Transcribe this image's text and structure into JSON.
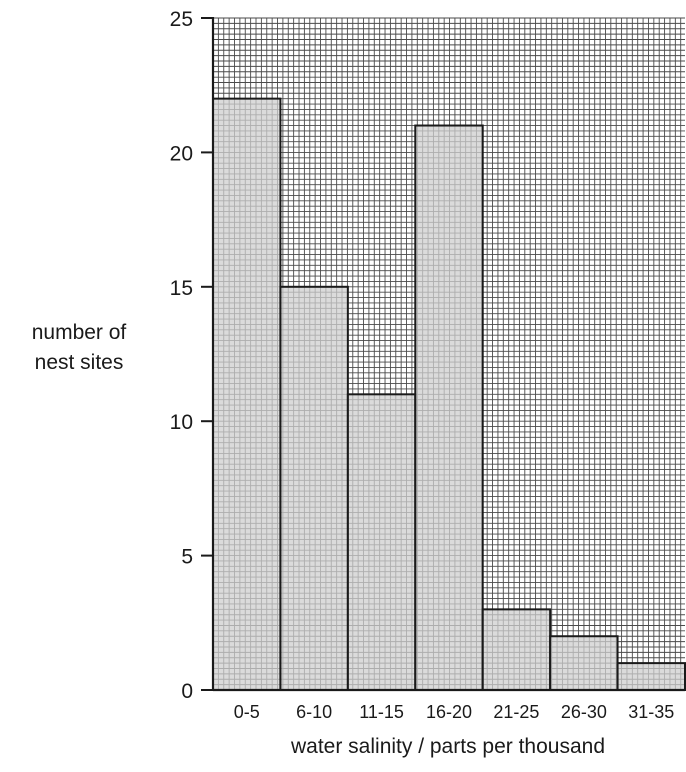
{
  "chart_data": {
    "type": "bar",
    "categories": [
      "0-5",
      "6-10",
      "11-15",
      "16-20",
      "21-25",
      "26-30",
      "31-35"
    ],
    "values": [
      22,
      15,
      11,
      21,
      3,
      2,
      1
    ],
    "xlabel": "water salinity / parts per thousand",
    "ylabel": "number of nest sites",
    "ylim": [
      0,
      25
    ],
    "yticks": [
      0,
      5,
      10,
      15,
      20,
      25
    ],
    "grid": true,
    "minor_grid_step": 1,
    "colors": {
      "bar_fill": "#cfcfcf",
      "bar_stroke": "#1a1a1a",
      "grid": "#2a2a2a",
      "background": "#ffffff"
    }
  }
}
